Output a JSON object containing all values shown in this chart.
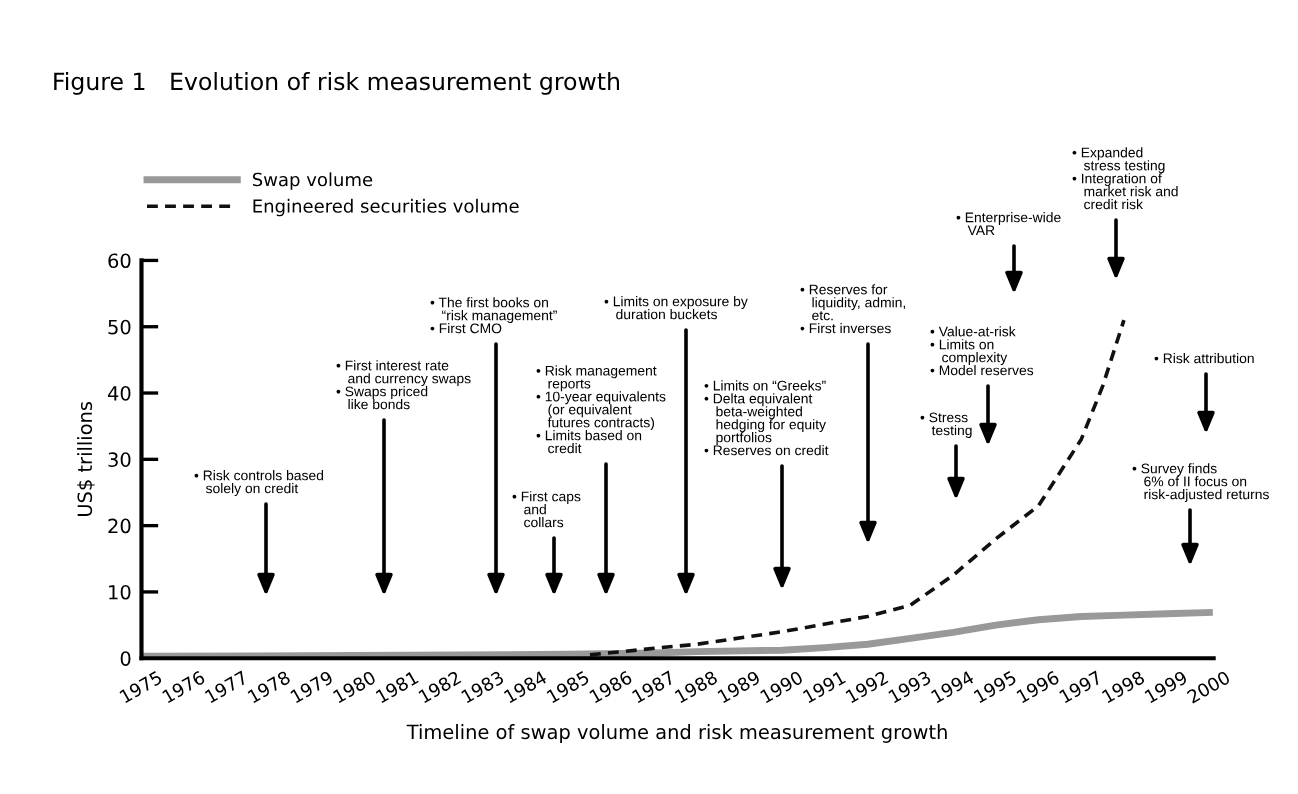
{
  "chart_data": {
    "type": "line",
    "title": "Figure 1   Evolution of risk measurement growth",
    "xlabel": "Timeline of swap volume and risk measurement growth",
    "ylabel": "US$ trillions",
    "series": [
      {
        "name": "Swap volume",
        "color": "#999999",
        "line_style": "solid",
        "x": [
          1975,
          1980,
          1985,
          1987,
          1988,
          1990,
          1991,
          1992,
          1993,
          1994,
          1995,
          1996,
          1997,
          1998,
          1999,
          2000
        ],
        "values": [
          0.3,
          0.4,
          0.6,
          0.8,
          1.0,
          1.2,
          1.6,
          2.1,
          3.0,
          3.9,
          5.0,
          5.8,
          6.3,
          6.5,
          6.7,
          6.9
        ]
      },
      {
        "name": "Engineered securities volume",
        "color": "#111111",
        "line_style": "dashed",
        "x": [
          1985.5,
          1987,
          1988,
          1990,
          1992,
          1993,
          1994,
          1995,
          1996,
          1997,
          1997.5,
          1998
        ],
        "values": [
          0.5,
          1.5,
          2.1,
          4.0,
          6.3,
          8.0,
          12.5,
          18.0,
          23.0,
          33.0,
          41.0,
          51.0
        ]
      }
    ],
    "xlim": [
      1975,
      2000.1
    ],
    "xticks": [
      1975,
      1976,
      1977,
      1978,
      1979,
      1980,
      1981,
      1982,
      1983,
      1984,
      1985,
      1986,
      1987,
      1988,
      1989,
      1990,
      1991,
      1992,
      1993,
      1994,
      1995,
      1996,
      1997,
      1998,
      1999,
      2000
    ],
    "ylim": [
      0,
      60
    ],
    "yticks": [
      0,
      10,
      20,
      30,
      40,
      50,
      60
    ],
    "legend": "top left",
    "grid": false,
    "annotations": [
      "• Risk controls based\n   solely on credit",
      "• First interest rate\n   and currency swaps\n• Swaps priced\n   like bonds",
      "• The first books on\n   “risk management”\n• First CMO",
      "• First caps\n   and\n   collars",
      "• Risk management\n   reports\n• 10-year equivalents\n   (or equivalent\n   futures contracts)\n• Limits based on\n   credit",
      "• Limits on exposure by\n   duration buckets",
      "• Limits on “Greeks”\n• Delta equivalent\n   beta-weighted\n   hedging for equity\n   portfolios\n• Reserves on credit",
      "• Reserves for\n   liquidity, admin,\n   etc.\n• First inverses",
      "• Stress\n   testing",
      "• Value-at-risk\n• Limits on\n   complexity\n• Model reserves",
      "• Enterprise-wide\n   VAR",
      "• Expanded\n   stress testing\n• Integration of\n   market risk and\n   credit risk",
      "• Risk attribution",
      "• Survey finds\n   6% of II focus on\n   risk-adjusted returns"
    ]
  }
}
